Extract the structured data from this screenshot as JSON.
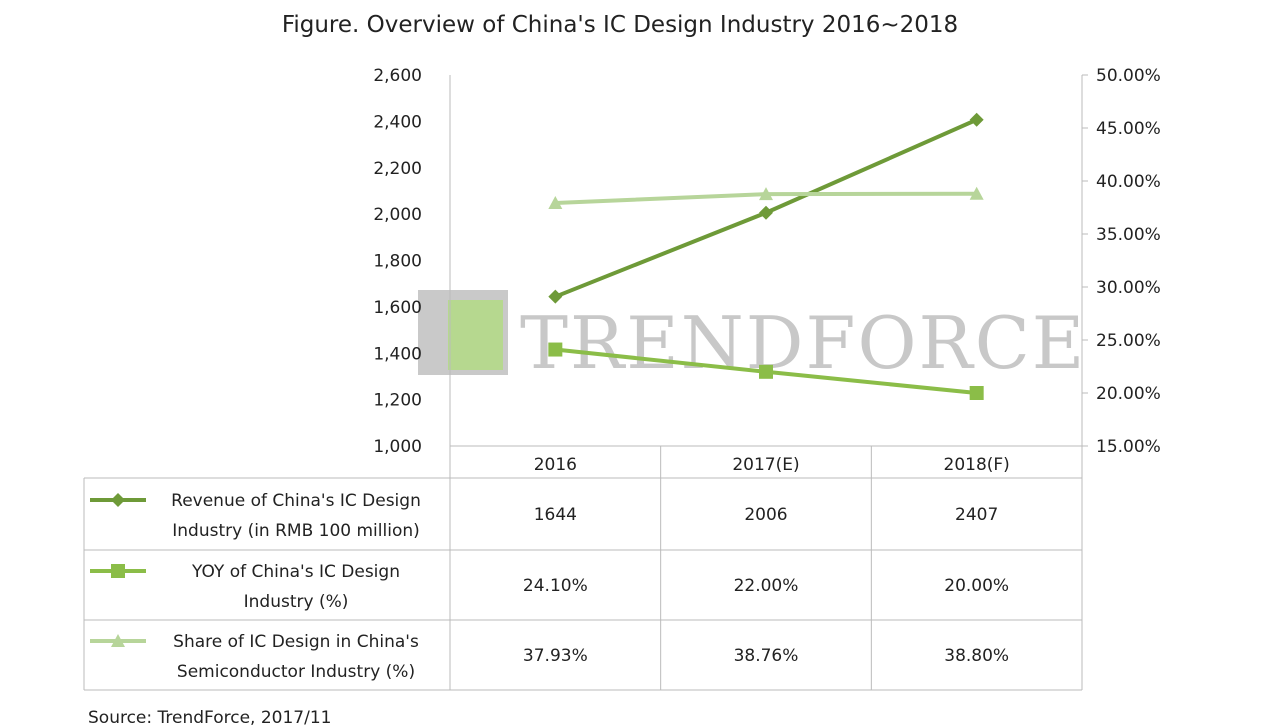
{
  "chart_data": {
    "type": "line",
    "title": "Figure. Overview of China's IC Design Industry 2016~2018",
    "categories": [
      "2016",
      "2017(E)",
      "2018(F)"
    ],
    "y_left": {
      "min": 1000,
      "max": 2600,
      "step": 200,
      "ticks": [
        "1,000",
        "1,200",
        "1,400",
        "1,600",
        "1,800",
        "2,000",
        "2,200",
        "2,400",
        "2,600"
      ]
    },
    "y_right": {
      "min": 15,
      "max": 50,
      "step": 5,
      "ticks": [
        "15.00%",
        "20.00%",
        "25.00%",
        "30.00%",
        "35.00%",
        "40.00%",
        "45.00%",
        "50.00%"
      ]
    },
    "grid": false,
    "legend": "data-table",
    "series": [
      {
        "name": "Revenue of China's IC Design Industry  (in RMB 100 million)",
        "name_lines": [
          "Revenue of China's IC Design",
          "Industry  (in RMB 100 million)"
        ],
        "axis": "left",
        "marker": "diamond",
        "color": "#6e9a38",
        "values": [
          1644,
          2006,
          2407
        ],
        "labels": [
          "1644",
          "2006",
          "2407"
        ]
      },
      {
        "name": "YOY of China's IC Design Industry (%)",
        "name_lines": [
          "YOY of China's IC Design",
          "Industry (%)"
        ],
        "axis": "right",
        "marker": "square",
        "color": "#8bbd48",
        "values": [
          24.1,
          22.0,
          20.0
        ],
        "labels": [
          "24.10%",
          "22.00%",
          "20.00%"
        ]
      },
      {
        "name": "Share of IC Design in China's Semiconductor Industry (%)",
        "name_lines": [
          "Share of IC Design in China's",
          "Semiconductor Industry (%)"
        ],
        "axis": "right",
        "marker": "triangle",
        "color": "#b7d59a",
        "values": [
          37.93,
          38.76,
          38.8
        ],
        "labels": [
          "37.93%",
          "38.76%",
          "38.80%"
        ]
      }
    ]
  },
  "watermark": "TRENDFORCE",
  "source": "Source: TrendForce, 2017/11"
}
